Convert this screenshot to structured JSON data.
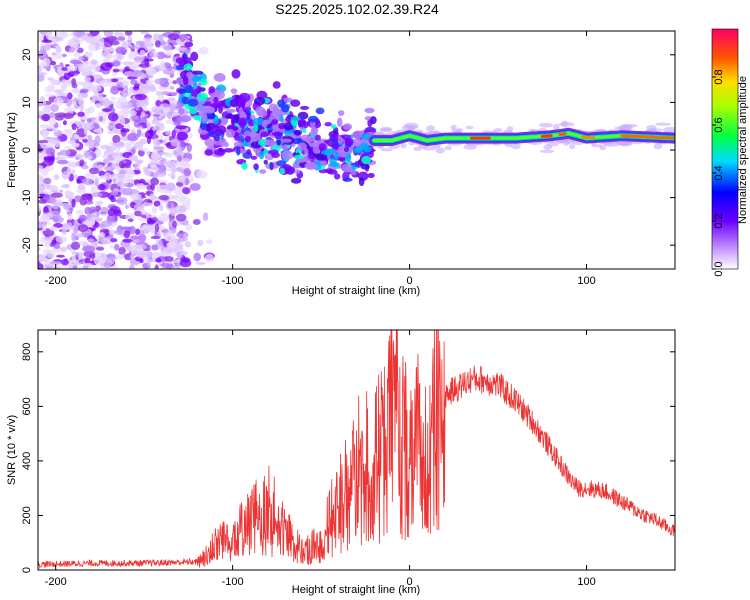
{
  "title": "S225.2025.102.02.39.R24",
  "chart_data": [
    {
      "type": "heatmap",
      "xlabel": "Height of straight line (km)",
      "ylabel": "Frequency (Hz)",
      "xlim": [
        -210,
        150
      ],
      "ylim": [
        -25,
        25
      ],
      "xticks": [
        -200,
        -100,
        0,
        100
      ],
      "yticks": [
        -20,
        -10,
        0,
        10,
        20
      ],
      "colorbar": {
        "label": "Normalized spectral amplitude",
        "range": [
          0,
          1
        ],
        "ticks": [
          0.0,
          0.2,
          0.4,
          0.6,
          0.8
        ]
      },
      "ridge": {
        "x": [
          -125,
          -110,
          -100,
          -90,
          -80,
          -70,
          -60,
          -50,
          -40,
          -30,
          -20,
          -10,
          0,
          10,
          20,
          40,
          60,
          80,
          90,
          100,
          120,
          150
        ],
        "freq": [
          13,
          6,
          7,
          5,
          4,
          3,
          2,
          1,
          0,
          -1,
          2,
          2,
          3,
          2,
          2.5,
          2.5,
          2.5,
          3,
          3.5,
          2.5,
          3,
          2.5
        ]
      }
    },
    {
      "type": "line",
      "xlabel": "Height of straight line (km)",
      "ylabel": "SNR (10 * v/v)",
      "xlim": [
        -210,
        150
      ],
      "ylim": [
        0,
        880
      ],
      "xticks": [
        -200,
        -100,
        0,
        100
      ],
      "yticks": [
        0,
        200,
        400,
        600,
        800
      ],
      "color": "#ee3333",
      "series": [
        {
          "x": [
            -210,
            -180,
            -150,
            -120,
            -115,
            -110,
            -100,
            -95,
            -90,
            -85,
            -80,
            -75,
            -70,
            -65,
            -60,
            -50,
            -45,
            -40,
            -35,
            -30,
            -25,
            -20,
            -15,
            -10,
            -8,
            -5,
            0,
            5,
            10,
            20,
            30,
            35,
            40,
            50,
            60,
            70,
            80,
            90,
            95,
            100,
            110,
            120,
            130,
            140,
            150
          ],
          "y": [
            20,
            25,
            25,
            30,
            60,
            120,
            150,
            160,
            200,
            230,
            250,
            210,
            160,
            110,
            70,
            120,
            200,
            280,
            340,
            400,
            450,
            420,
            520,
            600,
            700,
            560,
            480,
            520,
            600,
            640,
            680,
            700,
            700,
            680,
            620,
            540,
            440,
            340,
            300,
            300,
            290,
            250,
            210,
            180,
            140
          ]
        }
      ]
    }
  ]
}
